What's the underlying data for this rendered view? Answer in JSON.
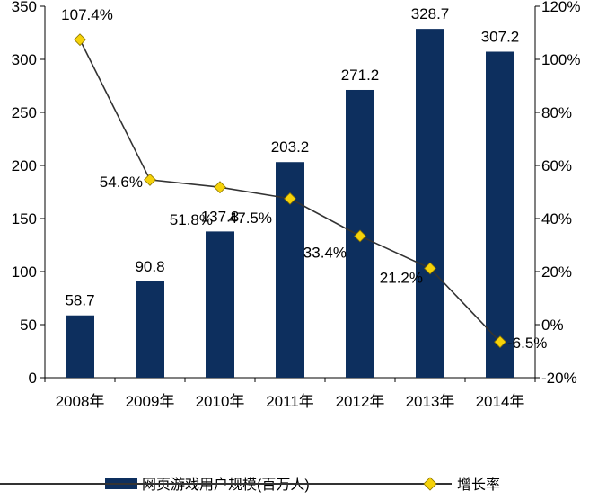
{
  "chart_data": {
    "type": "bar",
    "categories": [
      "2008年",
      "2009年",
      "2010年",
      "2011年",
      "2012年",
      "2013年",
      "2014年"
    ],
    "series": [
      {
        "name": "网页游戏用户规模(百万人)",
        "type": "bar",
        "axis": "left",
        "color": "#0d2f5e",
        "values": [
          58.7,
          90.8,
          137.8,
          203.2,
          271.2,
          328.7,
          307.2
        ],
        "labels": [
          "58.7",
          "90.8",
          "137.8",
          "203.2",
          "271.2",
          "328.7",
          "307.2"
        ]
      },
      {
        "name": "增长率",
        "type": "line",
        "axis": "right",
        "color": "#333333",
        "marker_color": "#f5d20a",
        "values": [
          107.4,
          54.6,
          51.8,
          47.5,
          33.4,
          21.2,
          -6.5
        ],
        "labels": [
          "107.4%",
          "54.6%",
          "51.8%",
          "47.5%",
          "33.4%",
          "21.2%",
          "-6.5%"
        ]
      }
    ],
    "y_left": {
      "min": 0,
      "max": 350,
      "ticks": [
        "0",
        "50",
        "100",
        "150",
        "200",
        "250",
        "300",
        "350"
      ]
    },
    "y_right": {
      "min": -20,
      "max": 120,
      "ticks": [
        "-20%",
        "0%",
        "20%",
        "40%",
        "60%",
        "80%",
        "100%",
        "120%"
      ]
    },
    "grid": false,
    "legend": "bottom"
  }
}
